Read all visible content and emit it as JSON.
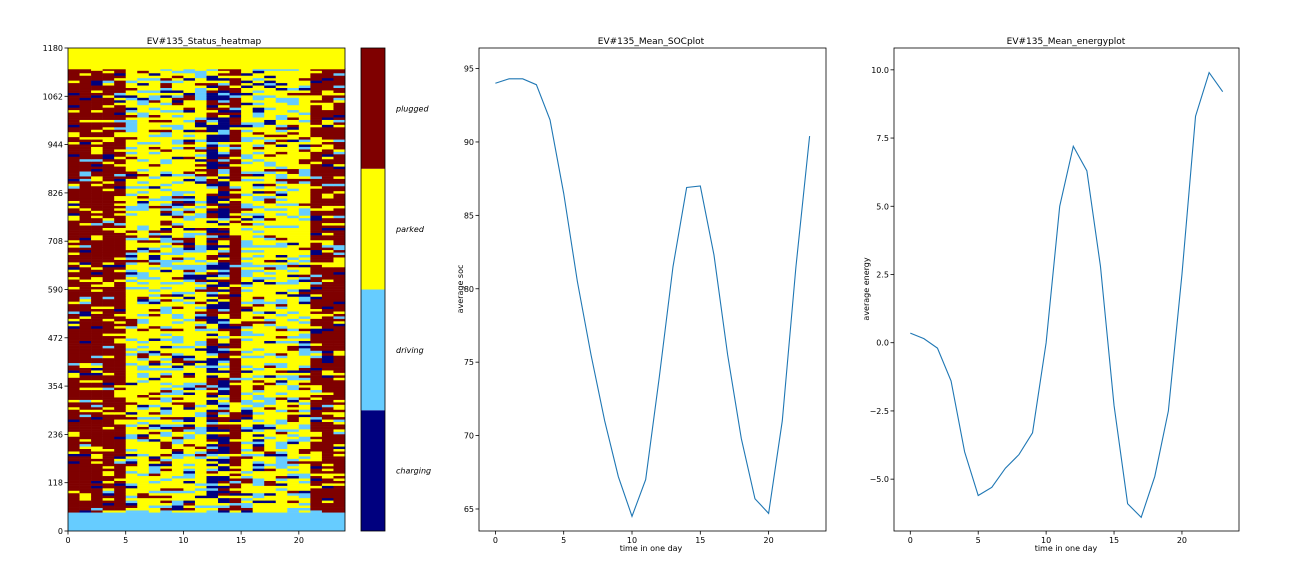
{
  "chart_data": [
    {
      "type": "heatmap",
      "title": "EV#135_Status_heatmap",
      "x_ticks": [
        0,
        5,
        10,
        15,
        20
      ],
      "y_ticks": [
        0,
        118,
        236,
        354,
        472,
        590,
        708,
        826,
        944,
        1062,
        1180
      ],
      "xlim": [
        0,
        24
      ],
      "ylim": [
        0,
        1180
      ],
      "legend": "colorbar-right",
      "categories": [
        "charging",
        "driving",
        "parked",
        "plugged"
      ],
      "category_colors": [
        "#00007f",
        "#66ccff",
        "#ffff00",
        "#7f0000"
      ],
      "column_profile": {
        "x": [
          0,
          1,
          2,
          3,
          4,
          5,
          6,
          7,
          8,
          9,
          10,
          11,
          12,
          13,
          14,
          15,
          16,
          17,
          18,
          19,
          20,
          21,
          22,
          23
        ],
        "dominant_status": [
          "plugged",
          "plugged",
          "plugged",
          "plugged",
          "plugged",
          "parked",
          "parked",
          "parked",
          "parked",
          "parked",
          "parked",
          "parked",
          "charging",
          "charging",
          "plugged",
          "parked",
          "parked",
          "parked",
          "parked",
          "parked",
          "parked",
          "plugged",
          "plugged",
          "plugged"
        ]
      },
      "bottom_band": {
        "status": "driving",
        "y_range": [
          0,
          45
        ]
      },
      "top_band": {
        "status": "parked",
        "y_range": [
          1128,
          1180
        ]
      }
    },
    {
      "type": "line",
      "title": "EV#135_Mean_SOCplot",
      "xlabel": "time in one day",
      "ylabel": "average soc",
      "x_ticks": [
        0,
        5,
        10,
        15,
        20
      ],
      "y_ticks": [
        65,
        70,
        75,
        80,
        85,
        90,
        95
      ],
      "xlim": [
        -1.2,
        24.2
      ],
      "ylim": [
        63.5,
        96.4
      ],
      "color": "#1f77b4",
      "x": [
        0,
        1,
        2,
        3,
        4,
        5,
        6,
        7,
        8,
        9,
        10,
        11,
        12,
        13,
        14,
        15,
        16,
        17,
        18,
        19,
        20,
        21,
        22,
        23
      ],
      "values": [
        94.0,
        94.3,
        94.3,
        93.9,
        91.5,
        86.5,
        80.5,
        75.5,
        71.0,
        67.2,
        64.5,
        67.0,
        74.0,
        81.5,
        86.9,
        87.0,
        82.3,
        75.5,
        69.8,
        65.7,
        64.7,
        71.0,
        81.5,
        90.4
      ]
    },
    {
      "type": "line",
      "title": "EV#135_Mean_energyplot",
      "xlabel": "time in one day",
      "ylabel": "average energy",
      "x_ticks": [
        0,
        5,
        10,
        15,
        20
      ],
      "y_ticks": [
        -5.0,
        -2.5,
        0.0,
        2.5,
        5.0,
        7.5,
        10.0
      ],
      "y_tick_labels": [
        "−5.0",
        "−2.5",
        "0.0",
        "2.5",
        "5.0",
        "7.5",
        "10.0"
      ],
      "xlim": [
        -1.2,
        24.2
      ],
      "ylim": [
        -6.9,
        10.8
      ],
      "color": "#1f77b4",
      "x": [
        0,
        1,
        2,
        3,
        4,
        5,
        6,
        7,
        8,
        9,
        10,
        11,
        12,
        13,
        14,
        15,
        16,
        17,
        18,
        19,
        20,
        21,
        22,
        23
      ],
      "values": [
        0.35,
        0.15,
        -0.2,
        -1.4,
        -4.0,
        -5.6,
        -5.3,
        -4.6,
        -4.1,
        -3.3,
        0.0,
        5.0,
        7.2,
        6.3,
        2.8,
        -2.3,
        -5.9,
        -6.4,
        -4.9,
        -2.5,
        2.5,
        8.3,
        9.9,
        9.2
      ]
    }
  ]
}
